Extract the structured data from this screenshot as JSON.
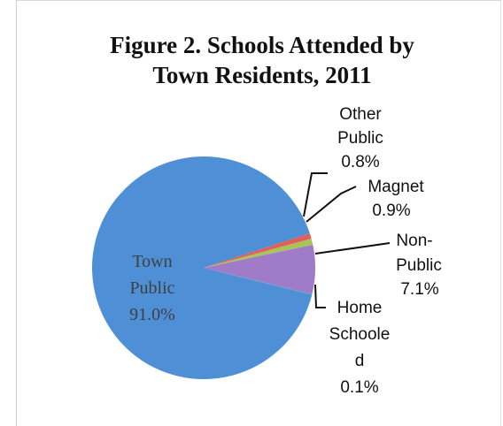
{
  "chart_data": {
    "type": "pie",
    "title_lines": [
      "Figure 2. Schools Attended by",
      "Town Residents, 2011"
    ],
    "slices": [
      {
        "name": "Town Public",
        "label_lines": [
          "Town",
          "Public"
        ],
        "pct_label": "91.0%",
        "value": 91.0,
        "color": "#4f8fd6"
      },
      {
        "name": "Non-Public",
        "label_lines": [
          "Non-",
          "Public"
        ],
        "pct_label": "7.1%",
        "value": 7.1,
        "color": "#a07cc8"
      },
      {
        "name": "Magnet",
        "label_lines": [
          "Magnet"
        ],
        "pct_label": "0.9%",
        "value": 0.9,
        "color": "#a8c35a"
      },
      {
        "name": "Other Public",
        "label_lines": [
          "Other",
          "Public"
        ],
        "pct_label": "0.8%",
        "value": 0.8,
        "color": "#e0605a"
      },
      {
        "name": "Home Schooled",
        "label_lines": [
          "Home",
          "Schoole",
          "d"
        ],
        "pct_label": "0.1%",
        "value": 0.1,
        "color": "#3fa7c0"
      }
    ],
    "legend": "none"
  }
}
